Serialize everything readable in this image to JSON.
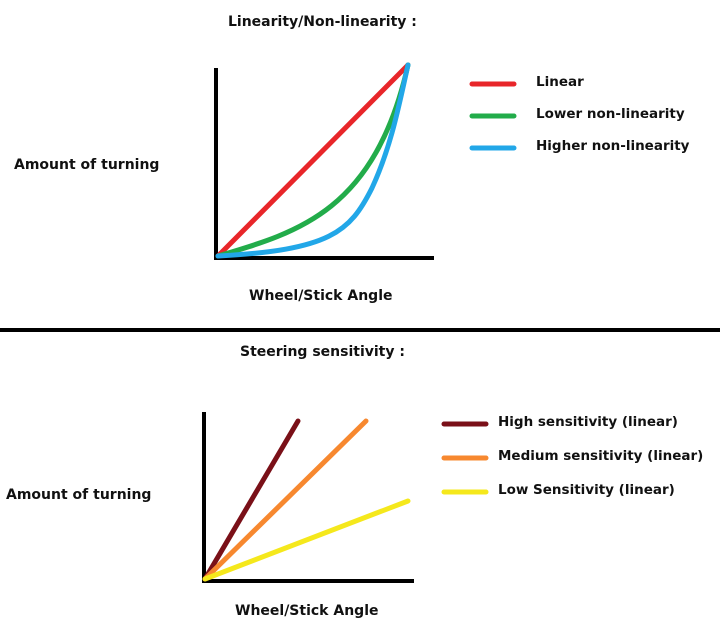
{
  "top_panel": {
    "title": "Linearity/Non-linearity :",
    "ylabel": "Amount of turning",
    "xlabel": "Wheel/Stick Angle",
    "legend": [
      {
        "label": "Linear",
        "color": "#e8262a"
      },
      {
        "label": "Lower non-linearity",
        "color": "#22ac4a"
      },
      {
        "label": "Higher non-linearity",
        "color": "#22a7e8"
      }
    ]
  },
  "bottom_panel": {
    "title": "Steering sensitivity :",
    "ylabel": "Amount of turning",
    "xlabel": "Wheel/Stick Angle",
    "legend": [
      {
        "label": "High sensitivity (linear)",
        "color": "#7a1018"
      },
      {
        "label": "Medium sensitivity (linear)",
        "color": "#f7882f"
      },
      {
        "label": "Low Sensitivity (linear)",
        "color": "#f5e81c"
      }
    ]
  },
  "colors": {
    "axis": "#000000",
    "divider": "#000000"
  }
}
